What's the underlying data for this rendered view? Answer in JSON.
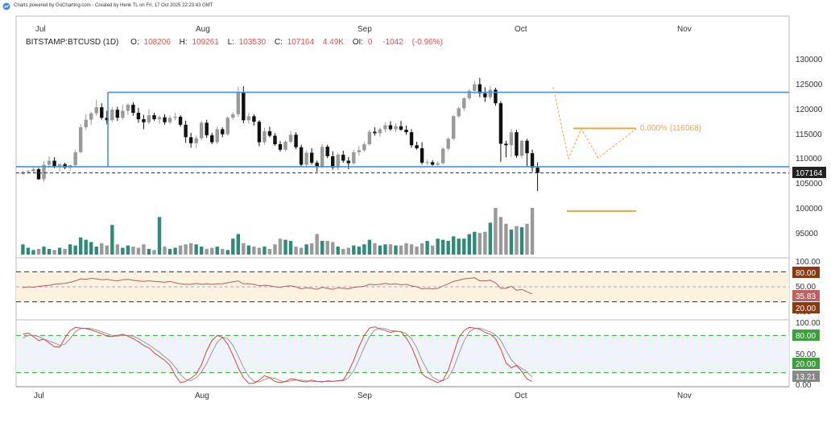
{
  "header": {
    "credit": "Charts powered by GoCharting.com - Created by Henk TL on Fri, 17 Oct 2025 22:23:43 GMT",
    "logo_icon": "gocharting-logo-icon"
  },
  "legend": {
    "symbol": "BITSTAMP:BTCUSD (1D)",
    "o_label": "O:",
    "o_value": "108206",
    "h_label": "H:",
    "h_value": "109261",
    "l_label": "L:",
    "l_value": "103530",
    "c_label": "C:",
    "c_value": "107164",
    "v_value": "4.49K",
    "oi_label": "OI:",
    "oi_value": "0",
    "chg_value": "-1042",
    "chg_pct": "(-0.96%)"
  },
  "colors": {
    "up": "#9a9a9a",
    "down": "#111111",
    "vol_up": "#2e8b7a",
    "vol_down": "#9a9a9a",
    "blue_line": "#4a90d9",
    "fib": "#e8a848",
    "rsi_band": "#fdf2e0",
    "rsi_line": "#b06060",
    "stoch_band": "#eef4fa",
    "stoch_k": "#e04040",
    "stoch_d": "#999999",
    "green_line": "#2eae2e",
    "badge_dark": "#222222",
    "badge_brown": "#8a3a10",
    "badge_rsi": "#c06060",
    "badge_green": "#3aa03a",
    "badge_gray": "#888888"
  },
  "price_axis": {
    "ticks": [
      "130000",
      "125000",
      "120000",
      "115000",
      "110000",
      "105000",
      "100000",
      "95000"
    ],
    "last_price": "107164"
  },
  "rsi_axis": {
    "ticks": [
      "100.00",
      "50.00",
      "0.00"
    ],
    "upper": "80.00",
    "value": "35.83",
    "lower": "20.00"
  },
  "stoch_axis": {
    "ticks": [
      "100.00",
      "50.00",
      "0.00"
    ],
    "upper": "80.00",
    "lower": "20.00",
    "value": "13.21"
  },
  "fib": {
    "label": "0.000% (116068)"
  },
  "x_axis": {
    "top_labels": [
      "Jul",
      "Aug",
      "Sep",
      "Oct",
      "Nov"
    ],
    "bottom_labels": [
      "Jul",
      "Aug",
      "Sep",
      "Oct",
      "Nov"
    ]
  },
  "chart_data": {
    "type": "candlestick",
    "interval": "1D",
    "start_date": "2025-06-28",
    "y_range": [
      100000,
      132000
    ],
    "support_level": 108400,
    "resistance_level": 123300,
    "last_close_level": 107164,
    "ohlc": [
      [
        107000,
        107600,
        106800,
        107300
      ],
      [
        107300,
        107800,
        107000,
        107500
      ],
      [
        107500,
        108300,
        107200,
        107900
      ],
      [
        107900,
        108200,
        105800,
        105900
      ],
      [
        105900,
        109500,
        105400,
        108800
      ],
      [
        108800,
        110400,
        108200,
        109600
      ],
      [
        109600,
        110300,
        108100,
        108300
      ],
      [
        108300,
        109000,
        107400,
        108900
      ],
      [
        108900,
        109200,
        107900,
        108200
      ],
      [
        108200,
        108800,
        107500,
        108700
      ],
      [
        108700,
        111800,
        108500,
        111300
      ],
      [
        111300,
        116900,
        111100,
        116300
      ],
      [
        116300,
        118900,
        115800,
        117800
      ],
      [
        117800,
        119400,
        116800,
        119100
      ],
      [
        119100,
        121800,
        118600,
        120300
      ],
      [
        120300,
        121100,
        117800,
        118200
      ],
      [
        118200,
        119600,
        116900,
        117700
      ],
      [
        117700,
        120300,
        117300,
        119800
      ],
      [
        119800,
        120400,
        117600,
        118200
      ],
      [
        118200,
        120800,
        117800,
        119600
      ],
      [
        119600,
        121100,
        118700,
        120800
      ],
      [
        120800,
        121300,
        118600,
        119200
      ],
      [
        119200,
        120200,
        117200,
        117900
      ],
      [
        117900,
        118800,
        115900,
        117300
      ],
      [
        117300,
        119900,
        116900,
        118700
      ],
      [
        118700,
        119200,
        117600,
        117900
      ],
      [
        117900,
        118700,
        117000,
        118300
      ],
      [
        118300,
        118900,
        116800,
        117300
      ],
      [
        117300,
        118700,
        116900,
        118200
      ],
      [
        118200,
        119200,
        117700,
        118400
      ],
      [
        118400,
        118700,
        116400,
        116800
      ],
      [
        116800,
        117600,
        113200,
        114300
      ],
      [
        114300,
        115200,
        112200,
        113100
      ],
      [
        113100,
        114600,
        112100,
        114100
      ],
      [
        114100,
        117600,
        113700,
        117200
      ],
      [
        117200,
        117800,
        114200,
        114700
      ],
      [
        114700,
        115200,
        112900,
        113300
      ],
      [
        113300,
        116400,
        112900,
        115900
      ],
      [
        115900,
        116300,
        114300,
        114900
      ],
      [
        114900,
        118500,
        114600,
        118200
      ],
      [
        118200,
        119300,
        117800,
        118900
      ],
      [
        118900,
        124400,
        118400,
        123300
      ],
      [
        123300,
        124500,
        117100,
        117700
      ],
      [
        117700,
        119200,
        117000,
        118500
      ],
      [
        118500,
        118900,
        116600,
        117400
      ],
      [
        117400,
        117700,
        112500,
        113300
      ],
      [
        113300,
        116200,
        112800,
        115500
      ],
      [
        115500,
        116400,
        114300,
        114600
      ],
      [
        114600,
        115100,
        112600,
        112900
      ],
      [
        112900,
        113500,
        111400,
        111800
      ],
      [
        111800,
        113700,
        111500,
        113400
      ],
      [
        113400,
        115600,
        113100,
        114800
      ],
      [
        114800,
        115300,
        111900,
        112300
      ],
      [
        112300,
        112800,
        108300,
        108800
      ],
      [
        108800,
        111600,
        108400,
        111200
      ],
      [
        111200,
        112100,
        108800,
        109200
      ],
      [
        109200,
        109600,
        107400,
        108300
      ],
      [
        108300,
        112900,
        108100,
        112400
      ],
      [
        112400,
        112800,
        110100,
        110500
      ],
      [
        110500,
        111500,
        107800,
        108200
      ],
      [
        108200,
        111200,
        107700,
        110800
      ],
      [
        110800,
        111600,
        109200,
        109600
      ],
      [
        109600,
        110300,
        107900,
        109100
      ],
      [
        109100,
        111800,
        108800,
        111300
      ],
      [
        111300,
        112600,
        110600,
        111700
      ],
      [
        111700,
        113400,
        111400,
        112900
      ],
      [
        112900,
        115800,
        112600,
        115400
      ],
      [
        115400,
        116300,
        114600,
        115100
      ],
      [
        115100,
        116200,
        114400,
        115900
      ],
      [
        115900,
        117300,
        115300,
        116700
      ],
      [
        116700,
        117500,
        115600,
        115900
      ],
      [
        115900,
        117100,
        115300,
        116500
      ],
      [
        116500,
        117600,
        115600,
        115800
      ],
      [
        115800,
        116600,
        114800,
        115300
      ],
      [
        115300,
        115900,
        112200,
        112700
      ],
      [
        112700,
        113400,
        111800,
        112100
      ],
      [
        112100,
        113300,
        108800,
        109200
      ],
      [
        109200,
        109900,
        108700,
        109300
      ],
      [
        109300,
        109700,
        108600,
        108800
      ],
      [
        108800,
        109500,
        108500,
        109100
      ],
      [
        109100,
        112300,
        108900,
        112000
      ],
      [
        112000,
        114300,
        111700,
        114000
      ],
      [
        114000,
        118800,
        113700,
        118500
      ],
      [
        118500,
        120400,
        118200,
        120100
      ],
      [
        120100,
        122300,
        119600,
        122100
      ],
      [
        122100,
        123900,
        121800,
        123600
      ],
      [
        123600,
        125600,
        122900,
        124900
      ],
      [
        124900,
        126200,
        122300,
        123100
      ],
      [
        123100,
        124300,
        121400,
        122300
      ],
      [
        122300,
        124500,
        121800,
        123800
      ],
      [
        123800,
        124200,
        120600,
        121100
      ],
      [
        121100,
        121500,
        109400,
        113000
      ],
      [
        113000,
        113600,
        110300,
        112700
      ],
      [
        112700,
        116000,
        110300,
        115300
      ],
      [
        115300,
        115800,
        110200,
        110600
      ],
      [
        110600,
        113800,
        110100,
        113600
      ],
      [
        113600,
        114000,
        108500,
        111100
      ],
      [
        111100,
        111800,
        107300,
        108200
      ],
      [
        108206,
        109261,
        103530,
        107164
      ]
    ],
    "volume_bars": [
      9,
      6,
      4,
      5,
      7,
      5,
      4,
      6,
      5,
      9,
      8,
      15,
      13,
      11,
      7,
      10,
      8,
      26,
      9,
      6,
      8,
      7,
      6,
      9,
      5,
      4,
      33,
      7,
      5,
      6,
      8,
      9,
      10,
      9,
      7,
      5,
      6,
      7,
      5,
      4,
      14,
      18,
      10,
      8,
      7,
      6,
      7,
      5,
      9,
      14,
      13,
      12,
      7,
      6,
      9,
      10,
      18,
      12,
      12,
      11,
      7,
      5,
      6,
      8,
      7,
      9,
      13,
      10,
      8,
      9,
      9,
      8,
      8,
      10,
      9,
      7,
      10,
      12,
      8,
      14,
      13,
      12,
      16,
      14,
      14,
      18,
      20,
      19,
      20,
      28,
      41,
      33,
      27,
      22,
      25,
      24,
      27,
      41
    ],
    "rsi": {
      "upper": 80,
      "lower": 20,
      "mid": 50,
      "last": 35.83,
      "values": [
        48,
        50,
        49,
        51,
        52,
        53,
        55,
        56,
        57,
        59,
        62,
        66,
        65,
        67,
        66,
        64,
        65,
        63,
        62,
        64,
        65,
        63,
        62,
        61,
        62,
        61,
        60,
        59,
        61,
        58,
        56,
        55,
        55,
        57,
        55,
        56,
        55,
        56,
        56,
        58,
        60,
        62,
        56,
        56,
        55,
        52,
        53,
        52,
        50,
        49,
        51,
        52,
        50,
        46,
        48,
        47,
        45,
        49,
        47,
        45,
        48,
        47,
        46,
        49,
        50,
        51,
        55,
        54,
        55,
        57,
        55,
        56,
        54,
        55,
        52,
        50,
        46,
        47,
        46,
        47,
        52,
        56,
        61,
        63,
        66,
        67,
        68,
        62,
        62,
        63,
        58,
        47,
        47,
        51,
        43,
        45,
        40,
        35.83
      ]
    },
    "stoch": {
      "upper": 80,
      "lower": 20,
      "last": 13.21,
      "k": [
        82,
        84,
        78,
        72,
        74,
        68,
        62,
        61,
        76,
        88,
        93,
        92,
        91,
        89,
        86,
        83,
        79,
        78,
        80,
        82,
        79,
        75,
        70,
        64,
        60,
        52,
        46,
        40,
        32,
        16,
        4,
        6,
        11,
        18,
        33,
        55,
        72,
        80,
        77,
        66,
        48,
        28,
        12,
        3,
        3,
        8,
        15,
        12,
        6,
        4,
        6,
        10,
        9,
        6,
        5,
        8,
        6,
        5,
        7,
        6,
        7,
        8,
        22,
        40,
        62,
        80,
        92,
        94,
        90,
        88,
        85,
        87,
        86,
        76,
        62,
        41,
        18,
        12,
        8,
        4,
        8,
        24,
        50,
        76,
        88,
        93,
        92,
        90,
        85,
        82,
        75,
        58,
        36,
        28,
        32,
        22,
        10,
        6
      ],
      "d": [
        76,
        80,
        80,
        78,
        74,
        71,
        68,
        64,
        66,
        75,
        86,
        91,
        92,
        91,
        89,
        86,
        83,
        80,
        79,
        80,
        80,
        79,
        75,
        70,
        65,
        59,
        53,
        46,
        39,
        29,
        17,
        9,
        7,
        12,
        21,
        35,
        53,
        69,
        77,
        75,
        64,
        47,
        29,
        14,
        6,
        5,
        9,
        12,
        11,
        7,
        5,
        7,
        8,
        8,
        7,
        6,
        6,
        6,
        6,
        6,
        7,
        7,
        12,
        23,
        41,
        61,
        78,
        89,
        92,
        91,
        88,
        87,
        86,
        83,
        75,
        60,
        40,
        24,
        13,
        8,
        7,
        12,
        27,
        50,
        71,
        86,
        91,
        92,
        89,
        86,
        81,
        72,
        56,
        41,
        32,
        27,
        21,
        13
      ]
    },
    "y_ticks": [
      130000,
      125000,
      120000,
      115000,
      110000,
      105000,
      100000,
      95000
    ],
    "x_ticks": [
      "Jul",
      "Aug",
      "Sep",
      "Oct",
      "Nov"
    ],
    "fib_level": 116068,
    "fib_label": "0.000% (116068)"
  }
}
